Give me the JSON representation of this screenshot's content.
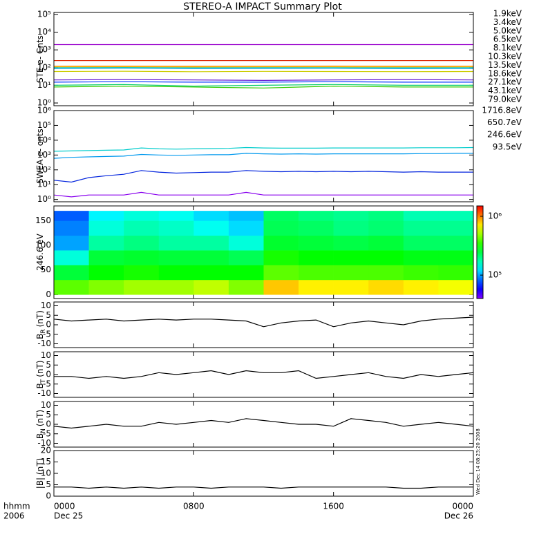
{
  "title": "STEREO-A IMPACT Summary Plot",
  "timestamp": "Wed Dec 14 08:23:20 2008",
  "x_axis": {
    "label": "hhmm",
    "year": "2006",
    "xlim": [
      0,
      24
    ],
    "xticks": [
      {
        "value": 0,
        "label": "0000"
      },
      {
        "value": 8,
        "label": "0800"
      },
      {
        "value": 16,
        "label": "1600"
      },
      {
        "value": 24,
        "label": "0000"
      }
    ],
    "dates": [
      "Dec 25",
      "Dec 26"
    ]
  },
  "chart_data": [
    {
      "type": "line",
      "scale": "log",
      "ylabel": "STE e- Cnts",
      "ylim": [
        0.7,
        130000
      ],
      "yticks": [
        {
          "value": 1,
          "label": "10⁰"
        },
        {
          "value": 10,
          "label": "10¹"
        },
        {
          "value": 100,
          "label": "10²"
        },
        {
          "value": 1000,
          "label": "10³"
        },
        {
          "value": 10000,
          "label": "10⁴"
        },
        {
          "value": 100000,
          "label": "10⁵"
        }
      ],
      "x": [
        0,
        4,
        8,
        12,
        16,
        20,
        24
      ],
      "series": [
        {
          "name": "1.9keV",
          "color": "#9900cc",
          "values": [
            2000,
            2000,
            2000,
            2000,
            2000,
            2000,
            2000
          ]
        },
        {
          "name": "3.4keV",
          "color": "#5500cc",
          "values": [
            20,
            21,
            20,
            19,
            20,
            21,
            20
          ]
        },
        {
          "name": "5.0keV",
          "color": "#0033ff",
          "values": [
            15,
            16,
            15,
            15,
            16,
            15,
            15
          ]
        },
        {
          "name": "6.5keV",
          "color": "#0099dd",
          "values": [
            90,
            92,
            88,
            90,
            91,
            89,
            90
          ]
        },
        {
          "name": "8.1keV",
          "color": "#00cccc",
          "values": [
            100,
            102,
            99,
            101,
            100,
            98,
            100
          ]
        },
        {
          "name": "10.3keV",
          "color": "#00cc66",
          "values": [
            10,
            11,
            9,
            10,
            11,
            10,
            10
          ]
        },
        {
          "name": "13.5keV",
          "color": "#33cc00",
          "values": [
            8,
            9,
            8,
            7,
            9,
            8,
            8
          ]
        },
        {
          "name": "18.6keV",
          "color": "#cccc00",
          "values": [
            60,
            62,
            58,
            61,
            60,
            59,
            60
          ]
        },
        {
          "name": "27.1keV",
          "color": "#ffcc00",
          "values": [
            110,
            112,
            108,
            111,
            110,
            109,
            110
          ]
        },
        {
          "name": "43.1keV",
          "color": "#ff8800",
          "values": [
            120,
            121,
            119,
            120,
            122,
            118,
            120
          ]
        },
        {
          "name": "79.0keV",
          "color": "#dd2200",
          "values": [
            250,
            250,
            250,
            250,
            250,
            250,
            250
          ]
        }
      ]
    },
    {
      "type": "line",
      "scale": "log",
      "ylabel": "SWEA e- cnts",
      "ylim": [
        0.7,
        1000000
      ],
      "yticks": [
        {
          "value": 1,
          "label": "10⁰"
        },
        {
          "value": 10,
          "label": "10¹"
        },
        {
          "value": 100,
          "label": "10²"
        },
        {
          "value": 1000,
          "label": "10³"
        },
        {
          "value": 10000,
          "label": "10⁴"
        },
        {
          "value": 100000,
          "label": "10⁵"
        },
        {
          "value": 1000000,
          "label": "10⁶"
        }
      ],
      "x": [
        0,
        1,
        2,
        3,
        4,
        5,
        6,
        7,
        8,
        9,
        10,
        11,
        12,
        13,
        14,
        15,
        16,
        17,
        18,
        19,
        20,
        21,
        22,
        23,
        24
      ],
      "series": [
        {
          "name": "1716.8eV",
          "color": "#8800ee",
          "values": [
            2,
            1.5,
            2,
            2,
            2,
            3,
            2,
            2,
            2,
            2,
            2,
            3,
            2,
            2,
            2,
            2,
            2,
            2,
            2,
            2,
            2,
            2,
            2,
            2,
            2
          ]
        },
        {
          "name": "650.7eV",
          "color": "#0022dd",
          "values": [
            20,
            15,
            30,
            40,
            50,
            90,
            70,
            60,
            65,
            70,
            70,
            90,
            80,
            75,
            80,
            75,
            80,
            75,
            80,
            75,
            70,
            75,
            70,
            70,
            70
          ]
        },
        {
          "name": "246.6eV",
          "color": "#0099ee",
          "values": [
            600,
            700,
            750,
            800,
            850,
            1100,
            1000,
            950,
            1000,
            1050,
            1050,
            1300,
            1200,
            1150,
            1200,
            1150,
            1200,
            1200,
            1200,
            1200,
            1200,
            1250,
            1250,
            1300,
            1300
          ]
        },
        {
          "name": "93.5eV",
          "color": "#00cccc",
          "values": [
            1800,
            1900,
            2000,
            2100,
            2200,
            3000,
            2600,
            2500,
            2600,
            2700,
            2800,
            3200,
            3000,
            2900,
            2900,
            2900,
            3000,
            3000,
            3000,
            3000,
            3000,
            3100,
            3100,
            3100,
            3200
          ]
        }
      ]
    },
    {
      "type": "heatmap",
      "ylabel": "246.6 eV",
      "ylim": [
        -8,
        180
      ],
      "yticks": [
        0,
        50,
        100,
        150
      ],
      "x_edges": [
        0,
        2,
        4,
        6,
        8,
        10,
        12,
        14,
        16,
        18,
        20,
        22,
        24
      ],
      "y_edges": [
        0,
        30,
        60,
        90,
        120,
        150,
        170
      ],
      "z": [
        [
          400000,
          450000,
          500000,
          500000,
          550000,
          450000,
          800000,
          700000,
          700000,
          750000,
          700000,
          650000
        ],
        [
          250000,
          300000,
          320000,
          300000,
          300000,
          300000,
          400000,
          380000,
          380000,
          380000,
          360000,
          350000
        ],
        [
          150000,
          250000,
          260000,
          250000,
          250000,
          230000,
          320000,
          300000,
          300000,
          300000,
          280000,
          280000
        ],
        [
          100000,
          180000,
          200000,
          180000,
          180000,
          150000,
          260000,
          250000,
          240000,
          250000,
          220000,
          220000
        ],
        [
          90000,
          150000,
          170000,
          160000,
          140000,
          120000,
          230000,
          220000,
          200000,
          210000,
          190000,
          190000
        ],
        [
          80000,
          130000,
          150000,
          140000,
          120000,
          110000,
          220000,
          200000,
          190000,
          200000,
          170000,
          170000
        ]
      ],
      "clim": [
        40000,
        1500000
      ],
      "cticks": [
        {
          "value": 100000,
          "label": "10⁵"
        },
        {
          "value": 1000000,
          "label": "10⁶"
        }
      ]
    },
    {
      "type": "line",
      "scale": "linear",
      "ylabel": "B",
      "ylabel_sub": "R",
      "ylabel_unit": "(nT)",
      "ylim": [
        -12,
        12
      ],
      "yticks": [
        -10,
        -5,
        0,
        5,
        10
      ],
      "x": [
        0,
        1,
        2,
        3,
        4,
        5,
        6,
        7,
        8,
        9,
        10,
        11,
        12,
        13,
        14,
        15,
        16,
        17,
        18,
        19,
        20,
        21,
        22,
        23,
        24
      ],
      "series": [
        {
          "color": "#000000",
          "values": [
            3,
            2,
            2.5,
            3,
            2,
            2.5,
            3,
            2.5,
            3,
            3,
            2.5,
            2,
            -1,
            1,
            2,
            2.5,
            -1,
            1,
            2,
            1,
            0,
            2,
            3,
            3.5,
            4
          ]
        }
      ]
    },
    {
      "type": "line",
      "scale": "linear",
      "ylabel": "B",
      "ylabel_sub": "T",
      "ylabel_unit": "(nT)",
      "ylim": [
        -12,
        12
      ],
      "yticks": [
        -10,
        -5,
        0,
        5,
        10
      ],
      "x": [
        0,
        1,
        2,
        3,
        4,
        5,
        6,
        7,
        8,
        9,
        10,
        11,
        12,
        13,
        14,
        15,
        16,
        17,
        18,
        19,
        20,
        21,
        22,
        23,
        24
      ],
      "series": [
        {
          "color": "#000000",
          "values": [
            -1,
            -1,
            -2,
            -1,
            -2,
            -1,
            1,
            0,
            1,
            2,
            0,
            2,
            1,
            1,
            2,
            -2,
            -1,
            0,
            1,
            -1,
            -2,
            0,
            -1,
            0,
            1
          ]
        }
      ]
    },
    {
      "type": "line",
      "scale": "linear",
      "ylabel": "B",
      "ylabel_sub": "N",
      "ylabel_unit": "(nT)",
      "ylim": [
        -12,
        12
      ],
      "yticks": [
        -10,
        -5,
        0,
        5,
        10
      ],
      "x": [
        0,
        1,
        2,
        3,
        4,
        5,
        6,
        7,
        8,
        9,
        10,
        11,
        12,
        13,
        14,
        15,
        16,
        17,
        18,
        19,
        20,
        21,
        22,
        23,
        24
      ],
      "series": [
        {
          "color": "#000000",
          "values": [
            -1,
            -2,
            -1,
            0,
            -1,
            -1,
            1,
            0,
            1,
            2,
            1,
            3,
            2,
            1,
            0,
            0,
            -1,
            3,
            2,
            1,
            -1,
            0,
            1,
            0,
            -1
          ]
        }
      ]
    },
    {
      "type": "line",
      "scale": "linear",
      "ylabel": "|B| (nT)",
      "ylim": [
        0,
        20
      ],
      "yticks": [
        0,
        5,
        10,
        15,
        20
      ],
      "x": [
        0,
        1,
        2,
        3,
        4,
        5,
        6,
        7,
        8,
        9,
        10,
        11,
        12,
        13,
        14,
        15,
        16,
        17,
        18,
        19,
        20,
        21,
        22,
        23,
        24
      ],
      "series": [
        {
          "color": "#000000",
          "values": [
            4,
            4,
            3.5,
            4,
            3.5,
            4,
            3.5,
            4,
            4,
            3.5,
            4,
            4,
            4,
            3.5,
            4,
            4,
            4,
            4,
            4,
            4,
            3.5,
            3.5,
            4,
            4,
            4
          ]
        }
      ]
    }
  ]
}
